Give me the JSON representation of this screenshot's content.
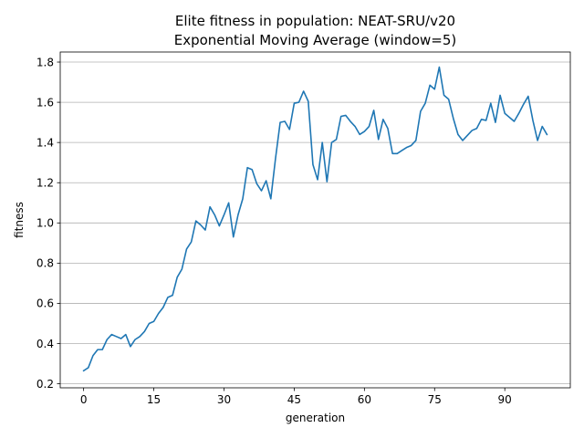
{
  "chart_data": {
    "type": "line",
    "title": "Elite fitness in population: NEAT-SRU/v20",
    "subtitle": "Exponential Moving Average (window=5)",
    "xlabel": "generation",
    "ylabel": "fitness",
    "xlim": [
      -5,
      104
    ],
    "ylim": [
      0.18,
      1.85
    ],
    "xticks": [
      0,
      15,
      30,
      45,
      60,
      75,
      90
    ],
    "yticks": [
      0.2,
      0.4,
      0.6,
      0.8,
      1.0,
      1.2,
      1.4,
      1.6,
      1.8
    ],
    "ytick_labels": [
      "0.2",
      "0.4",
      "0.6",
      "0.8",
      "1.0",
      "1.2",
      "1.4",
      "1.6",
      "1.8"
    ],
    "grid": "y",
    "series": [
      {
        "color": "#1f77b4",
        "x": [
          0,
          1,
          2,
          3,
          4,
          5,
          6,
          7,
          8,
          9,
          10,
          11,
          12,
          13,
          14,
          15,
          16,
          17,
          18,
          19,
          20,
          21,
          22,
          23,
          24,
          25,
          26,
          27,
          28,
          29,
          30,
          31,
          32,
          33,
          34,
          35,
          36,
          37,
          38,
          39,
          40,
          41,
          42,
          43,
          44,
          45,
          46,
          47,
          48,
          49,
          50,
          51,
          52,
          53,
          54,
          55,
          56,
          57,
          58,
          59,
          60,
          61,
          62,
          63,
          64,
          65,
          66,
          67,
          68,
          69,
          70,
          71,
          72,
          73,
          74,
          75,
          76,
          77,
          78,
          79,
          80,
          81,
          82,
          83,
          84,
          85,
          86,
          87,
          88,
          89,
          90,
          91,
          92,
          93,
          94,
          95,
          96,
          97,
          98,
          99
        ],
        "values": [
          0.265,
          0.28,
          0.34,
          0.37,
          0.37,
          0.42,
          0.445,
          0.435,
          0.425,
          0.445,
          0.385,
          0.42,
          0.435,
          0.46,
          0.5,
          0.51,
          0.55,
          0.58,
          0.63,
          0.64,
          0.73,
          0.77,
          0.87,
          0.905,
          1.01,
          0.99,
          0.965,
          1.08,
          1.04,
          0.985,
          1.04,
          1.1,
          0.93,
          1.04,
          1.12,
          1.275,
          1.265,
          1.195,
          1.16,
          1.21,
          1.12,
          1.32,
          1.5,
          1.505,
          1.465,
          1.595,
          1.6,
          1.655,
          1.605,
          1.29,
          1.215,
          1.4,
          1.205,
          1.4,
          1.415,
          1.53,
          1.535,
          1.505,
          1.48,
          1.44,
          1.455,
          1.48,
          1.56,
          1.415,
          1.515,
          1.47,
          1.345,
          1.345,
          1.36,
          1.375,
          1.385,
          1.41,
          1.555,
          1.595,
          1.685,
          1.665,
          1.775,
          1.635,
          1.615,
          1.52,
          1.44,
          1.41,
          1.435,
          1.46,
          1.47,
          1.515,
          1.51,
          1.595,
          1.5,
          1.635,
          1.545,
          1.525,
          1.505,
          1.545,
          1.59,
          1.63,
          1.51,
          1.41,
          1.48,
          1.44
        ]
      }
    ]
  }
}
